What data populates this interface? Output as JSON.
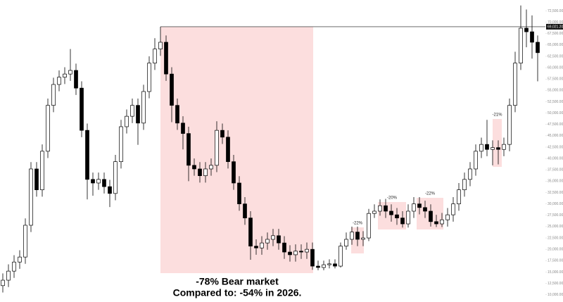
{
  "chart_data": {
    "type": "candlestick",
    "up_color": "#ffffff",
    "down_color": "#000000",
    "edge_color": "#000000",
    "grid": false,
    "ylim": [
      8400,
      74900
    ],
    "yticks": [
      {
        "value": 10000,
        "label": "10,000.00"
      },
      {
        "value": 12500,
        "label": "12,500.00"
      },
      {
        "value": 15000,
        "label": "15,000.00"
      },
      {
        "value": 17500,
        "label": "17,500.00"
      },
      {
        "value": 20000,
        "label": "20,000.00"
      },
      {
        "value": 22500,
        "label": "22,500.00"
      },
      {
        "value": 25000,
        "label": "25,000.00"
      },
      {
        "value": 27500,
        "label": "27,500.00"
      },
      {
        "value": 30000,
        "label": "30,000.00"
      },
      {
        "value": 32500,
        "label": "32,500.00"
      },
      {
        "value": 35000,
        "label": "35,000.00"
      },
      {
        "value": 37500,
        "label": "37,500.00"
      },
      {
        "value": 40000,
        "label": "40,000.00"
      },
      {
        "value": 42500,
        "label": "42,500.00"
      },
      {
        "value": 45000,
        "label": "45,000.00"
      },
      {
        "value": 47500,
        "label": "47,500.00"
      },
      {
        "value": 50000,
        "label": "50,000.00"
      },
      {
        "value": 52500,
        "label": "52,500.00"
      },
      {
        "value": 55000,
        "label": "55,000.00"
      },
      {
        "value": 57500,
        "label": "57,500.00"
      },
      {
        "value": 60000,
        "label": "60,000.00"
      },
      {
        "value": 62500,
        "label": "62,500.00"
      },
      {
        "value": 65000,
        "label": "65,000.00"
      },
      {
        "value": 67500,
        "label": "67,500.00"
      },
      {
        "value": 70000,
        "label": "70,000.00"
      },
      {
        "value": 72500,
        "label": "72,500.00"
      }
    ],
    "price_line": {
      "value": 69021.2,
      "label": "69,021.20"
    },
    "open": [
      12000,
      13200,
      15200,
      17200,
      18300,
      25300,
      37700,
      33100,
      41600,
      51700,
      56300,
      57900,
      58600,
      59400,
      55500,
      46200,
      35400,
      34600,
      35400,
      33800,
      32300,
      39300,
      47000,
      49300,
      51700,
      47800,
      54750,
      61000,
      64100,
      65600,
      58600,
      51700,
      47800,
      45500,
      38500,
      37700,
      36200,
      37700,
      38500,
      46200,
      44700,
      39300,
      34600,
      30000,
      26900,
      20700,
      20300,
      21400,
      22200,
      23000,
      21400,
      19400,
      18800,
      19600,
      19400,
      20000,
      16300,
      16000,
      16600,
      16800,
      16300,
      20700,
      22200,
      23800,
      22200,
      22500,
      27900,
      28400,
      29600,
      28400,
      27600,
      26900,
      25600,
      28400,
      30000,
      29200,
      28400,
      26100,
      25600,
      26500,
      27600,
      30000,
      33100,
      35400,
      37700,
      41600,
      43100,
      42000,
      42400,
      42000,
      43100,
      51700,
      61000,
      68700,
      67900,
      65600
    ],
    "high": [
      14700,
      16700,
      18700,
      19800,
      26800,
      39200,
      39200,
      43100,
      53200,
      57800,
      59400,
      60100,
      64100,
      60900,
      57000,
      47700,
      36900,
      36900,
      36900,
      35300,
      40800,
      48500,
      50800,
      53200,
      53200,
      56250,
      62500,
      66500,
      69000,
      67100,
      60100,
      53200,
      49300,
      47000,
      40000,
      39200,
      39200,
      40000,
      48200,
      47700,
      46200,
      40800,
      36100,
      31500,
      28400,
      22200,
      22900,
      23700,
      24500,
      24500,
      22900,
      20900,
      21100,
      21100,
      21500,
      21500,
      17500,
      17500,
      17800,
      17800,
      21500,
      23700,
      25000,
      25000,
      24000,
      28900,
      29900,
      31000,
      31100,
      29900,
      29100,
      28400,
      29900,
      31500,
      31500,
      30700,
      29900,
      27600,
      28000,
      29100,
      31500,
      34600,
      36900,
      39200,
      43100,
      44600,
      48500,
      44000,
      44000,
      44600,
      53200,
      63500,
      73700,
      72800,
      71500,
      67100
    ],
    "low": [
      10500,
      11700,
      13700,
      15700,
      16800,
      23800,
      31600,
      31600,
      40100,
      50200,
      54800,
      56400,
      57100,
      54000,
      44700,
      31000,
      31800,
      33100,
      32300,
      29300,
      30800,
      37800,
      45500,
      47800,
      43000,
      46300,
      53250,
      59500,
      62600,
      57100,
      48000,
      46300,
      42000,
      35000,
      36200,
      34700,
      34700,
      36200,
      37000,
      43200,
      37800,
      33100,
      28500,
      25400,
      17700,
      18800,
      18800,
      19900,
      20700,
      19900,
      17900,
      17300,
      17300,
      17900,
      17900,
      15500,
      15400,
      15400,
      15800,
      15800,
      16000,
      19900,
      21000,
      20700,
      20700,
      21800,
      26900,
      27400,
      26900,
      26100,
      25400,
      24800,
      24800,
      26900,
      27700,
      26900,
      25000,
      24900,
      24900,
      25000,
      26100,
      28500,
      31600,
      33900,
      36200,
      40100,
      40500,
      38500,
      38700,
      40500,
      41600,
      50200,
      59500,
      64500,
      62000,
      57000
    ],
    "close": [
      13200,
      15200,
      17200,
      18300,
      25300,
      37700,
      33100,
      41600,
      51700,
      56300,
      57900,
      58600,
      59400,
      55500,
      46200,
      35400,
      34600,
      35400,
      33800,
      32300,
      39300,
      47000,
      49300,
      51700,
      47800,
      54750,
      61000,
      64100,
      65600,
      58600,
      51700,
      47800,
      45500,
      38500,
      37700,
      36200,
      37700,
      38500,
      46200,
      44700,
      39300,
      34600,
      30000,
      26900,
      20700,
      20300,
      21400,
      22200,
      23000,
      21400,
      19400,
      18800,
      19600,
      19400,
      20000,
      16300,
      16000,
      16600,
      16800,
      16300,
      20700,
      22200,
      23800,
      22200,
      22500,
      27900,
      28400,
      29600,
      28400,
      27600,
      26900,
      25600,
      28400,
      30000,
      29200,
      28400,
      26100,
      25600,
      26500,
      27600,
      30000,
      33100,
      35400,
      37700,
      41600,
      43100,
      42000,
      42400,
      42000,
      43100,
      51700,
      61000,
      68700,
      67900,
      65600,
      63300
    ],
    "box_color": "#fcdede",
    "annotations": [
      {
        "label": "-22%"
      },
      {
        "label": "-20%"
      },
      {
        "label": "-22%"
      },
      {
        "label": "-21%"
      }
    ],
    "caption": [
      "-78% Bear market",
      "Compared to: -54% in 2026."
    ]
  }
}
